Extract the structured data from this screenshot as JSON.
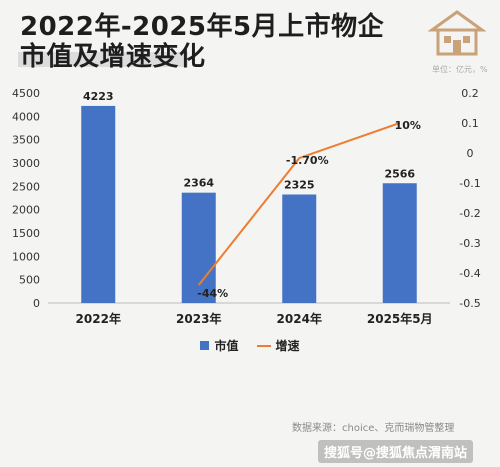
{
  "header": {
    "title_line1": "2022年-2025年5月上市物企",
    "title_line2": "市值及增速变化",
    "unit": "单位：亿元，%"
  },
  "source": "数据来源：choice、克而瑞物管整理",
  "footer": "搜狐号@搜狐焦点渭南站",
  "colors": {
    "bar": "#4472c4",
    "line": "#ed7d31"
  },
  "chart_data": {
    "type": "bar",
    "categories": [
      "2022年",
      "2023年",
      "2024年",
      "2025年5月"
    ],
    "series": [
      {
        "name": "市值",
        "type": "bar",
        "axis": "left",
        "values": [
          4223,
          2364,
          2325,
          2566
        ]
      },
      {
        "name": "增速",
        "type": "line",
        "axis": "right",
        "values": [
          null,
          -0.44,
          -0.017,
          0.1
        ]
      }
    ],
    "bar_labels": [
      "4223",
      "2364",
      "2325",
      "2566"
    ],
    "line_labels": [
      null,
      "-44%",
      "-1.70%",
      "10%"
    ],
    "y_left": {
      "min": 0,
      "max": 4500,
      "ticks": [
        "0",
        "500",
        "1000",
        "1500",
        "2000",
        "2500",
        "3000",
        "3500",
        "4000",
        "4500"
      ]
    },
    "y_right": {
      "min": -0.5,
      "max": 0.2,
      "ticks": [
        "-0.5",
        "-0.4",
        "-0.3",
        "-0.2",
        "-0.1",
        "0",
        "0.1",
        "0.2"
      ]
    },
    "legend": [
      "市值",
      "增速"
    ],
    "legend_position": "bottom",
    "grid": false
  }
}
